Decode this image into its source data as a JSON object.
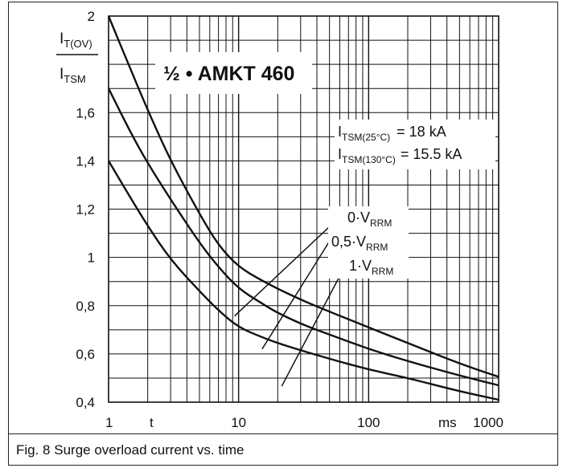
{
  "chart_data": {
    "type": "line",
    "title": "½ • AMKT 460",
    "x_scale": "log",
    "xlim": [
      1,
      1000
    ],
    "ylim": [
      0.4,
      2
    ],
    "x_ticks": [
      1,
      10,
      100,
      1000
    ],
    "x_tick_labels": [
      "1",
      "10",
      "100",
      "1000"
    ],
    "y_ticks": [
      0.4,
      0.6,
      0.8,
      1,
      1.2,
      1.4,
      1.6,
      2
    ],
    "y_tick_labels": [
      "0,4",
      "0,6",
      "0,8",
      "1",
      "1,2",
      "1,4",
      "1,6",
      "2"
    ],
    "xlabel": "t",
    "xunit": "ms",
    "ylabel_num": "I",
    "ylabel_num_sub": "T(OV)",
    "ylabel_den": "I",
    "ylabel_den_sub": "TSM",
    "grid": true,
    "annotations": {
      "itsm25": {
        "main": "I",
        "sub": "TSM(25°C)",
        "value": "= 18 kA"
      },
      "itsm130": {
        "main": "I",
        "sub": "TSM(130°C)",
        "value": "= 15.5 kA"
      }
    },
    "series": [
      {
        "name": "0·V",
        "name_sub": "RRM",
        "x": [
          1,
          1.5,
          2,
          3,
          5,
          7,
          10,
          15,
          20,
          30,
          50,
          100,
          200,
          500,
          1000
        ],
        "y": [
          2.0,
          1.77,
          1.61,
          1.4,
          1.18,
          1.05,
          0.96,
          0.905,
          0.87,
          0.825,
          0.775,
          0.71,
          0.645,
          0.56,
          0.505
        ]
      },
      {
        "name": "0,5·V",
        "name_sub": "RRM",
        "x": [
          1,
          1.5,
          2,
          3,
          5,
          7,
          10,
          15,
          20,
          30,
          50,
          100,
          200,
          500,
          1000
        ],
        "y": [
          1.7,
          1.51,
          1.39,
          1.24,
          1.06,
          0.96,
          0.87,
          0.81,
          0.77,
          0.725,
          0.68,
          0.62,
          0.57,
          0.51,
          0.47
        ]
      },
      {
        "name": "1·V",
        "name_sub": "RRM",
        "x": [
          1,
          1.5,
          2,
          3,
          5,
          7,
          10,
          15,
          20,
          30,
          50,
          100,
          200,
          500,
          1000
        ],
        "y": [
          1.4,
          1.24,
          1.13,
          0.99,
          0.86,
          0.78,
          0.71,
          0.67,
          0.645,
          0.615,
          0.58,
          0.535,
          0.5,
          0.445,
          0.41
        ]
      }
    ]
  },
  "caption": "Fig. 8 Surge overload current vs. time"
}
